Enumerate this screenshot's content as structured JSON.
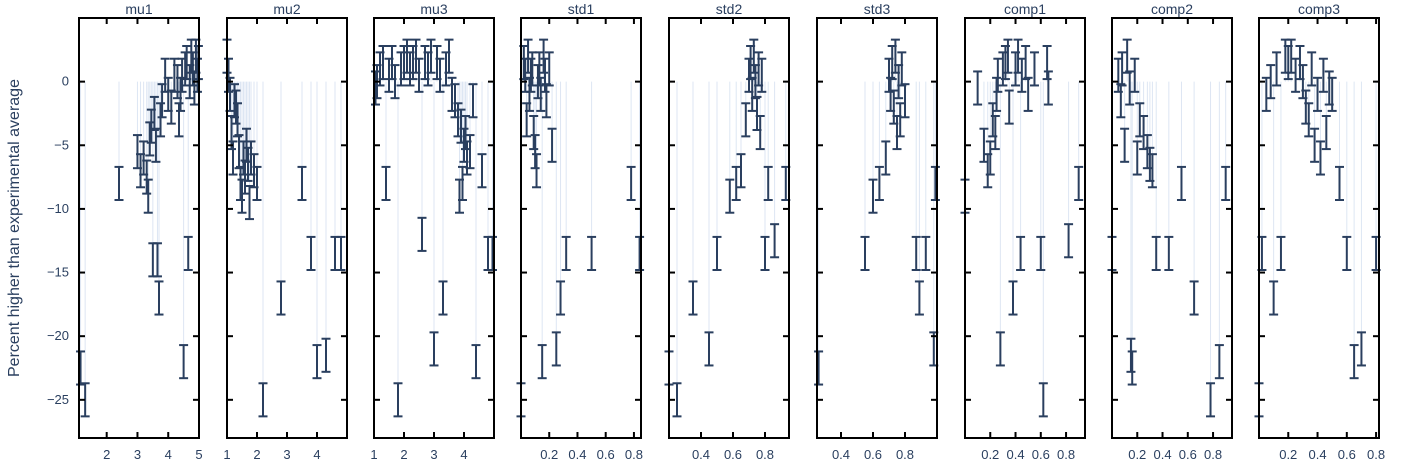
{
  "chart_data": {
    "type": "scatter",
    "ylabel": "Percent higher than experimental average",
    "ylim": [
      -28,
      5
    ],
    "y_ticks": [
      0,
      -5,
      -10,
      -15,
      -20,
      -25
    ],
    "y_tick_labels": [
      "0",
      "−5",
      "−10",
      "−15",
      "−20",
      "−25"
    ],
    "colors": {
      "marker": "#2a3f5f",
      "stem": "#dde6f3",
      "frame": "#000000"
    },
    "grid": false,
    "panels": [
      {
        "title": "mu1",
        "xlim": [
          1.1,
          5
        ],
        "x_ticks": [
          2,
          3,
          4,
          5
        ],
        "x_tick_labels": [
          "2",
          "3",
          "4",
          "5"
        ],
        "points": [
          [
            1.15,
            -22.5
          ],
          [
            1.3,
            -25
          ],
          [
            2.4,
            -8
          ],
          [
            3.0,
            -5.5
          ],
          [
            3.1,
            -7
          ],
          [
            3.2,
            -6
          ],
          [
            3.3,
            -7.5
          ],
          [
            3.35,
            -9
          ],
          [
            3.4,
            -4.5
          ],
          [
            3.45,
            -3.5
          ],
          [
            3.5,
            -14
          ],
          [
            3.55,
            -2.5
          ],
          [
            3.6,
            -5
          ],
          [
            3.65,
            -14
          ],
          [
            3.7,
            -17
          ],
          [
            3.75,
            -3
          ],
          [
            3.8,
            -1.5
          ],
          [
            3.9,
            0.5
          ],
          [
            4.0,
            -1
          ],
          [
            4.1,
            -2
          ],
          [
            4.2,
            0.5
          ],
          [
            4.3,
            0
          ],
          [
            4.35,
            -3
          ],
          [
            4.4,
            -1
          ],
          [
            4.45,
            0.5
          ],
          [
            4.5,
            -22
          ],
          [
            4.55,
            1
          ],
          [
            4.6,
            1.5
          ],
          [
            4.65,
            -13.5
          ],
          [
            4.7,
            0
          ],
          [
            4.75,
            2
          ],
          [
            4.8,
            1
          ],
          [
            4.85,
            -0.5
          ],
          [
            4.9,
            2
          ],
          [
            4.95,
            0.5
          ],
          [
            4.98,
            1.5
          ]
        ]
      },
      {
        "title": "mu2",
        "xlim": [
          1,
          5
        ],
        "x_ticks": [
          1,
          2,
          3,
          4
        ],
        "x_tick_labels": [
          "1",
          "2",
          "3",
          "4"
        ],
        "points": [
          [
            1.0,
            2
          ],
          [
            1.05,
            0.5
          ],
          [
            1.1,
            -1
          ],
          [
            1.15,
            -4
          ],
          [
            1.2,
            -6
          ],
          [
            1.25,
            -1.5
          ],
          [
            1.3,
            -2
          ],
          [
            1.35,
            -3
          ],
          [
            1.4,
            -5.5
          ],
          [
            1.45,
            -8
          ],
          [
            1.5,
            -9
          ],
          [
            1.55,
            -6
          ],
          [
            1.6,
            -7.5
          ],
          [
            1.65,
            -5
          ],
          [
            1.7,
            -6.5
          ],
          [
            1.75,
            -9.5
          ],
          [
            1.8,
            -6
          ],
          [
            1.9,
            -7
          ],
          [
            2.0,
            -8
          ],
          [
            2.2,
            -25
          ],
          [
            2.8,
            -17
          ],
          [
            3.5,
            -8
          ],
          [
            3.8,
            -13.5
          ],
          [
            4.0,
            -22
          ],
          [
            4.3,
            -21.5
          ],
          [
            4.6,
            -13.5
          ],
          [
            4.8,
            -13.5
          ]
        ]
      },
      {
        "title": "mu3",
        "xlim": [
          1,
          5
        ],
        "x_ticks": [
          1,
          2,
          3,
          4
        ],
        "x_tick_labels": [
          "1",
          "2",
          "3",
          "4"
        ],
        "points": [
          [
            1.05,
            -0.5
          ],
          [
            1.1,
            0
          ],
          [
            1.2,
            1
          ],
          [
            1.3,
            1.5
          ],
          [
            1.4,
            -8
          ],
          [
            1.5,
            0.5
          ],
          [
            1.6,
            1.5
          ],
          [
            1.7,
            0
          ],
          [
            1.8,
            -25
          ],
          [
            1.9,
            1
          ],
          [
            2.0,
            1.5
          ],
          [
            2.1,
            2
          ],
          [
            2.2,
            1
          ],
          [
            2.3,
            1.5
          ],
          [
            2.4,
            2
          ],
          [
            2.5,
            0.5
          ],
          [
            2.6,
            -12
          ],
          [
            2.7,
            1.5
          ],
          [
            2.8,
            1
          ],
          [
            2.9,
            2
          ],
          [
            3.0,
            -21
          ],
          [
            3.1,
            1.5
          ],
          [
            3.2,
            0.5
          ],
          [
            3.3,
            -17
          ],
          [
            3.4,
            1
          ],
          [
            3.5,
            2
          ],
          [
            3.6,
            -1
          ],
          [
            3.7,
            -1.5
          ],
          [
            3.8,
            -3
          ],
          [
            3.85,
            -9
          ],
          [
            3.9,
            -3.5
          ],
          [
            3.95,
            -8
          ],
          [
            4.0,
            -5
          ],
          [
            4.05,
            -4
          ],
          [
            4.1,
            -6
          ],
          [
            4.2,
            -5.5
          ],
          [
            4.3,
            -1.5
          ],
          [
            4.4,
            -22
          ],
          [
            4.6,
            -7
          ],
          [
            4.8,
            -13.5
          ],
          [
            4.95,
            -13.5
          ]
        ]
      },
      {
        "title": "std1",
        "xlim": [
          0,
          0.85
        ],
        "x_ticks": [
          0.2,
          0.4,
          0.6,
          0.8
        ],
        "x_tick_labels": [
          "0.2",
          "0.4",
          "0.6",
          "0.8"
        ],
        "points": [
          [
            0.0,
            -25
          ],
          [
            0.02,
            1.5
          ],
          [
            0.03,
            0.5
          ],
          [
            0.04,
            -3
          ],
          [
            0.05,
            2
          ],
          [
            0.06,
            -1
          ],
          [
            0.07,
            0.5
          ],
          [
            0.08,
            1
          ],
          [
            0.09,
            -4
          ],
          [
            0.1,
            -5.5
          ],
          [
            0.11,
            -7
          ],
          [
            0.12,
            0
          ],
          [
            0.13,
            1
          ],
          [
            0.14,
            -1
          ],
          [
            0.15,
            -22
          ],
          [
            0.16,
            2
          ],
          [
            0.17,
            0.5
          ],
          [
            0.18,
            -1.5
          ],
          [
            0.2,
            1
          ],
          [
            0.22,
            -5
          ],
          [
            0.25,
            -21
          ],
          [
            0.28,
            -17
          ],
          [
            0.32,
            -13.5
          ],
          [
            0.5,
            -13.5
          ],
          [
            0.78,
            -8
          ],
          [
            0.84,
            -13.5
          ]
        ]
      },
      {
        "title": "std2",
        "xlim": [
          0.2,
          0.95
        ],
        "x_ticks": [
          0.4,
          0.6,
          0.8
        ],
        "x_tick_labels": [
          "0.4",
          "0.6",
          "0.8"
        ],
        "points": [
          [
            0.2,
            -22.5
          ],
          [
            0.25,
            -25
          ],
          [
            0.35,
            -17
          ],
          [
            0.45,
            -21
          ],
          [
            0.5,
            -13.5
          ],
          [
            0.58,
            -9
          ],
          [
            0.62,
            -8
          ],
          [
            0.65,
            -7
          ],
          [
            0.68,
            -3
          ],
          [
            0.7,
            0.5
          ],
          [
            0.71,
            1.5
          ],
          [
            0.72,
            -1
          ],
          [
            0.73,
            2
          ],
          [
            0.74,
            0
          ],
          [
            0.75,
            -2.5
          ],
          [
            0.76,
            1
          ],
          [
            0.77,
            -4
          ],
          [
            0.78,
            0.5
          ],
          [
            0.8,
            -13.5
          ],
          [
            0.82,
            -8
          ],
          [
            0.86,
            -12.5
          ],
          [
            0.93,
            -8
          ]
        ]
      },
      {
        "title": "std3",
        "xlim": [
          0.25,
          1.0
        ],
        "x_ticks": [
          0.4,
          0.6,
          0.8
        ],
        "x_tick_labels": [
          "0.4",
          "0.6",
          "0.8"
        ],
        "points": [
          [
            0.26,
            -22.5
          ],
          [
            0.55,
            -13.5
          ],
          [
            0.6,
            -9
          ],
          [
            0.64,
            -8
          ],
          [
            0.68,
            -6
          ],
          [
            0.7,
            0.5
          ],
          [
            0.71,
            -1
          ],
          [
            0.72,
            1.5
          ],
          [
            0.73,
            -2
          ],
          [
            0.74,
            2
          ],
          [
            0.75,
            -4
          ],
          [
            0.76,
            0
          ],
          [
            0.77,
            -3
          ],
          [
            0.78,
            1
          ],
          [
            0.8,
            -1.5
          ],
          [
            0.87,
            -13.5
          ],
          [
            0.89,
            -17
          ],
          [
            0.93,
            -13.5
          ],
          [
            0.98,
            -21
          ],
          [
            0.99,
            -8
          ]
        ]
      },
      {
        "title": "comp1",
        "xlim": [
          0.0,
          0.95
        ],
        "x_ticks": [
          0.2,
          0.4,
          0.6,
          0.8
        ],
        "x_tick_labels": [
          "0.2",
          "0.4",
          "0.6",
          "0.8"
        ],
        "points": [
          [
            0.0,
            -9
          ],
          [
            0.1,
            -0.5
          ],
          [
            0.15,
            -5
          ],
          [
            0.18,
            -7
          ],
          [
            0.2,
            -6
          ],
          [
            0.22,
            -3
          ],
          [
            0.24,
            -4
          ],
          [
            0.25,
            -1
          ],
          [
            0.26,
            0.5
          ],
          [
            0.28,
            -21
          ],
          [
            0.3,
            1
          ],
          [
            0.32,
            1.5
          ],
          [
            0.34,
            2
          ],
          [
            0.35,
            -2
          ],
          [
            0.38,
            -17
          ],
          [
            0.4,
            1
          ],
          [
            0.42,
            2
          ],
          [
            0.44,
            -13.5
          ],
          [
            0.45,
            0.5
          ],
          [
            0.48,
            1.5
          ],
          [
            0.5,
            -1
          ],
          [
            0.55,
            1
          ],
          [
            0.6,
            -13.5
          ],
          [
            0.62,
            -25
          ],
          [
            0.65,
            1.5
          ],
          [
            0.66,
            -0.5
          ],
          [
            0.82,
            -12.5
          ],
          [
            0.9,
            -8
          ]
        ]
      },
      {
        "title": "comp2",
        "xlim": [
          0.0,
          0.95
        ],
        "x_ticks": [
          0.2,
          0.4,
          0.6,
          0.8
        ],
        "x_tick_labels": [
          "0.2",
          "0.4",
          "0.6",
          "0.8"
        ],
        "points": [
          [
            0.0,
            -13.5
          ],
          [
            0.05,
            0.5
          ],
          [
            0.07,
            -1.5
          ],
          [
            0.08,
            1
          ],
          [
            0.1,
            -5
          ],
          [
            0.12,
            2
          ],
          [
            0.14,
            -0.5
          ],
          [
            0.15,
            -21.5
          ],
          [
            0.16,
            -22.5
          ],
          [
            0.18,
            0.5
          ],
          [
            0.2,
            -6
          ],
          [
            0.22,
            -3
          ],
          [
            0.25,
            -4
          ],
          [
            0.28,
            -5.5
          ],
          [
            0.3,
            -6.5
          ],
          [
            0.32,
            -7
          ],
          [
            0.35,
            -13.5
          ],
          [
            0.45,
            -13.5
          ],
          [
            0.55,
            -8
          ],
          [
            0.65,
            -17
          ],
          [
            0.78,
            -25
          ],
          [
            0.85,
            -22
          ],
          [
            0.9,
            -8
          ]
        ]
      },
      {
        "title": "comp3",
        "xlim": [
          0.0,
          0.82
        ],
        "x_ticks": [
          0.2,
          0.4,
          0.6,
          0.8
        ],
        "x_tick_labels": [
          "0.2",
          "0.4",
          "0.6",
          "0.8"
        ],
        "points": [
          [
            0.0,
            -25
          ],
          [
            0.02,
            -13.5
          ],
          [
            0.05,
            -1
          ],
          [
            0.08,
            0
          ],
          [
            0.1,
            -17
          ],
          [
            0.12,
            1
          ],
          [
            0.15,
            -13.5
          ],
          [
            0.18,
            2
          ],
          [
            0.2,
            1.5
          ],
          [
            0.22,
            2
          ],
          [
            0.25,
            0.5
          ],
          [
            0.28,
            1.5
          ],
          [
            0.3,
            0
          ],
          [
            0.32,
            -2
          ],
          [
            0.34,
            -3
          ],
          [
            0.36,
            1
          ],
          [
            0.38,
            -5
          ],
          [
            0.4,
            -1
          ],
          [
            0.42,
            -6
          ],
          [
            0.44,
            0.5
          ],
          [
            0.46,
            -4
          ],
          [
            0.48,
            -0.5
          ],
          [
            0.5,
            -1
          ],
          [
            0.55,
            -8
          ],
          [
            0.6,
            -13.5
          ],
          [
            0.65,
            -22
          ],
          [
            0.7,
            -21
          ],
          [
            0.8,
            -13.5
          ]
        ]
      }
    ]
  }
}
